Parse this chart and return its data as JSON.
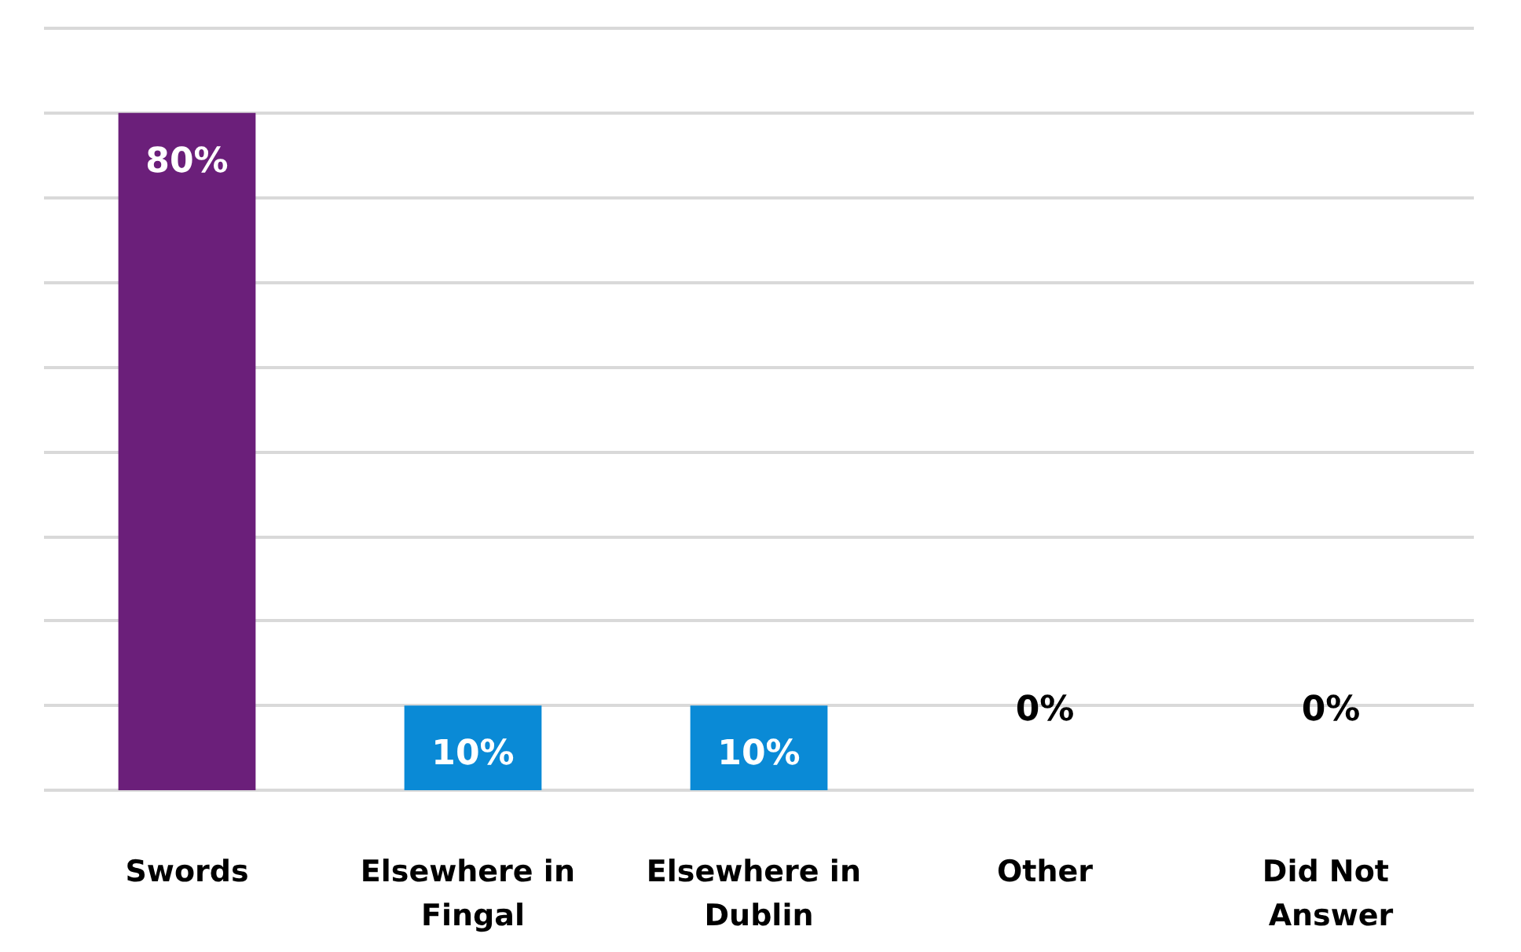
{
  "chart_data": {
    "type": "bar",
    "categories": [
      "Swords",
      "Elsewhere in Fingal",
      "Elsewhere in Dublin",
      "Other",
      "Did Not Answer"
    ],
    "values": [
      80,
      10,
      10,
      0,
      0
    ],
    "colors": [
      "#6b1f7a",
      "#0a8ad6",
      "#0a8ad6",
      "#3a8a2a",
      "#b8860b"
    ],
    "ylim": [
      0,
      90
    ],
    "yticks": [
      {
        "value": 0,
        "label": null
      },
      {
        "value": 10,
        "label": null
      },
      {
        "value": 20,
        "label": null
      },
      {
        "value": 30,
        "label": null
      },
      {
        "value": 40,
        "label": null
      },
      {
        "value": 50,
        "label": null
      },
      {
        "value": 60,
        "label": null
      },
      {
        "value": 70,
        "label": null
      },
      {
        "value": 80,
        "label": null
      },
      {
        "value": 90,
        "label": null
      }
    ],
    "value_labels": [
      "80%",
      "10%",
      "10%",
      "0%",
      "0%"
    ],
    "grid": true
  }
}
